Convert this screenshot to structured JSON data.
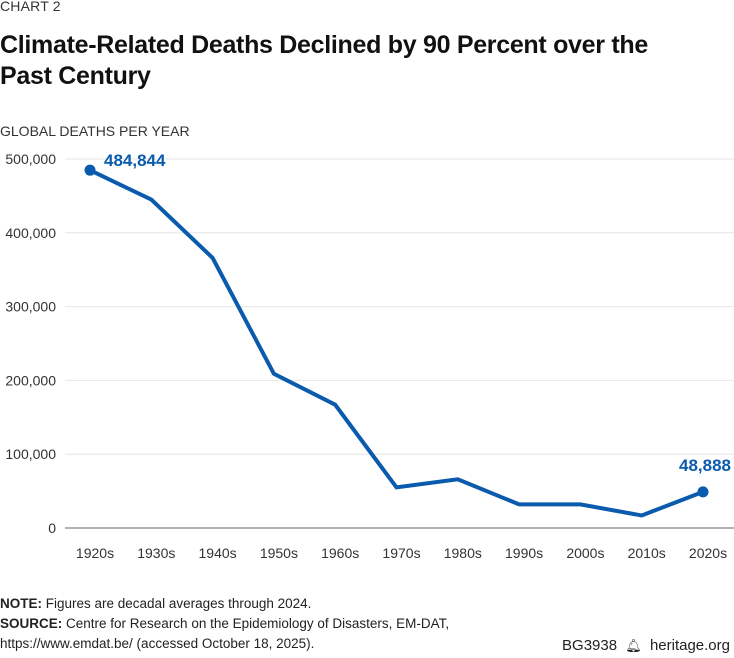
{
  "eyebrow": "CHART 2",
  "title": "Climate-Related Deaths Declined by 90 Percent over the Past Century",
  "notes": {
    "note_label": "NOTE:",
    "note_text": " Figures are decadal averages through 2024.",
    "source_label": "SOURCE:",
    "source_text": " Centre for Research on the Epidemiology of Disasters, EM-DAT,",
    "source_text2": "https://www.emdat.be/ (accessed October 18, 2025)."
  },
  "brand": {
    "code": "BG3938",
    "icon": "bell-icon",
    "site": "heritage.org"
  },
  "colors": {
    "line": "#0a5aad",
    "grid": "#e6e6e6",
    "axis": "#999999",
    "text": "#333333"
  },
  "chart_data": {
    "type": "line",
    "title": "Climate-Related Deaths Declined by 90 Percent over the Past Century",
    "xlabel": "",
    "ylabel": "GLOBAL DEATHS PER YEAR",
    "categories": [
      "1920s",
      "1930s",
      "1940s",
      "1950s",
      "1960s",
      "1970s",
      "1980s",
      "1990s",
      "2000s",
      "2010s",
      "2020s"
    ],
    "series": [
      {
        "name": "Global deaths per year",
        "values": [
          484844,
          445000,
          366000,
          209000,
          167000,
          55000,
          66000,
          32000,
          32000,
          17000,
          48888
        ]
      }
    ],
    "ylim": [
      0,
      500000
    ],
    "yticks": [
      0,
      100000,
      200000,
      300000,
      400000,
      500000
    ],
    "ytick_labels": [
      "0",
      "100,000",
      "200,000",
      "300,000",
      "400,000",
      "500,000"
    ],
    "annotations": [
      {
        "index": 0,
        "label": "484,844"
      },
      {
        "index": 10,
        "label": "48,888"
      }
    ],
    "grid": true,
    "legend": "none"
  }
}
